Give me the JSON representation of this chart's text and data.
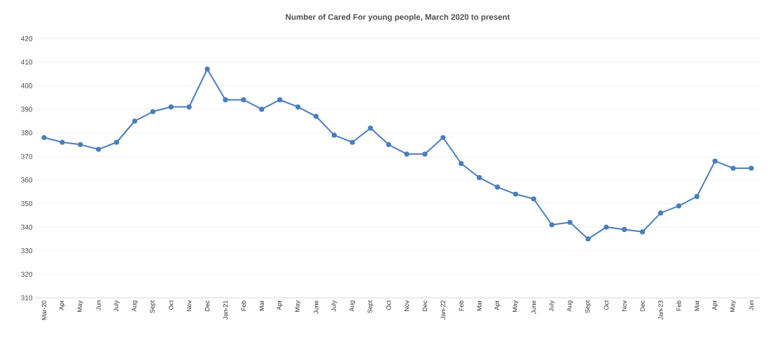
{
  "chart_data": {
    "type": "line",
    "title": "Number of Cared For young people, March 2020 to present",
    "categories": [
      "Mar-20",
      "Apr",
      "May",
      "Jun",
      "July",
      "Aug",
      "Sept",
      "Oct",
      "Nov",
      "Dec",
      "Jan-21",
      "Feb",
      "Mar",
      "Apr",
      "May",
      "June",
      "July",
      "Aug",
      "Sept",
      "Oct",
      "Nov",
      "Dec",
      "Jan-22",
      "Feb",
      "Mar",
      "Apr",
      "May",
      "June",
      "July",
      "Aug",
      "Sept",
      "Oct",
      "Nov",
      "Dec",
      "Jan-23",
      "Feb",
      "Mar",
      "Apr",
      "May",
      "Jun"
    ],
    "values": [
      378,
      376,
      375,
      373,
      376,
      385,
      389,
      391,
      391,
      407,
      394,
      394,
      390,
      394,
      391,
      387,
      379,
      376,
      382,
      375,
      371,
      371,
      378,
      367,
      361,
      357,
      354,
      352,
      341,
      342,
      335,
      340,
      339,
      338,
      346,
      349,
      353,
      368,
      365,
      365
    ],
    "color": "#4a7ebb",
    "marker": "circle",
    "line_style": "solid",
    "grid": "y",
    "ylim": [
      310,
      420
    ],
    "yticks": [
      310,
      320,
      330,
      340,
      350,
      360,
      370,
      380,
      390,
      400,
      410,
      420
    ]
  }
}
